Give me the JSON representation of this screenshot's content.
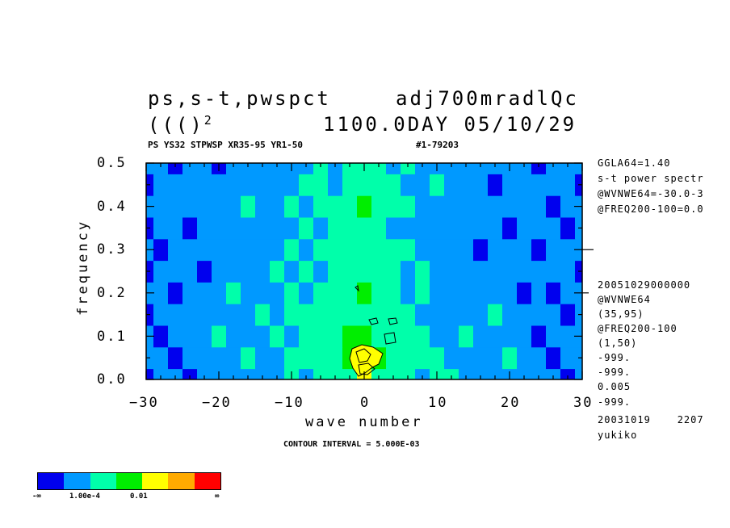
{
  "header": {
    "left_line1": "ps,s-t,pwspct",
    "right_line1": "adj700mradlQc",
    "left_line2": "((()",
    "left_line2_sup": "2",
    "right_line2": "1100.0DAY 05/10/29",
    "subtitle_left": "PS YS32 STPWSP XR35-95 YR1-50",
    "subtitle_right": "#1-79203"
  },
  "right_panel": {
    "top": [
      "GGLA64=1.40",
      "s-t power spectr",
      "@WVNWE64=-30.0-3",
      "@FREQ200-100=0.0"
    ],
    "bottom": [
      "20051029000000",
      "@WVNWE64",
      "(35,95)",
      "@FREQ200-100",
      "(1,50)",
      "-999.",
      "-999.",
      "0.005",
      "-999.",
      "20031019    2207",
      "yukiko"
    ]
  },
  "contour_label": "CONTOUR INTERVAL = 5.000E-03",
  "colorbar": {
    "colors": [
      "#0000ee",
      "#0099ff",
      "#00ffaa",
      "#00ee00",
      "#ffff00",
      "#ffaa00",
      "#ff0000"
    ],
    "labels": [
      "-∞",
      "1.00e-4",
      "0.01",
      "∞"
    ]
  },
  "chart_data": {
    "type": "heatmap",
    "xlabel": "wave number",
    "ylabel": "frequency",
    "xlim": [
      -30,
      30
    ],
    "ylim": [
      0.0,
      0.5
    ],
    "x_ticks": [
      -30,
      -20,
      -10,
      0,
      10,
      20,
      30
    ],
    "y_ticks": [
      0.0,
      0.1,
      0.2,
      0.3,
      0.4,
      0.5
    ],
    "x_tick_labels": [
      "−30",
      "−20",
      "−10",
      "0",
      "10",
      "20",
      "30"
    ],
    "y_tick_labels": [
      "0.0",
      "0.1",
      "0.2",
      "0.3",
      "0.4",
      "0.5"
    ],
    "level_colors": [
      "#0000ee",
      "#0099ff",
      "#00ffaa",
      "#00ee00",
      "#ffff00",
      "#ffaa00",
      "#ff0000"
    ],
    "grid_wavenumbers": [
      -30,
      -28,
      -26,
      -24,
      -22,
      -20,
      -18,
      -16,
      -14,
      -12,
      -10,
      -8,
      -6,
      -4,
      -2,
      0,
      2,
      4,
      6,
      8,
      10,
      12,
      14,
      16,
      18,
      20,
      22,
      24,
      26,
      28,
      30
    ],
    "grid_frequencies": [
      0.0,
      0.05,
      0.1,
      0.15,
      0.2,
      0.25,
      0.3,
      0.35,
      0.4,
      0.45,
      0.5
    ],
    "level_index": [
      [
        0,
        1,
        1,
        0,
        1,
        1,
        1,
        1,
        1,
        1,
        2,
        1,
        2,
        2,
        2,
        4,
        2,
        2,
        2,
        1,
        2,
        2,
        1,
        1,
        1,
        1,
        1,
        1,
        1,
        0,
        1
      ],
      [
        1,
        1,
        0,
        1,
        1,
        1,
        1,
        2,
        1,
        1,
        2,
        2,
        2,
        2,
        3,
        3,
        3,
        2,
        2,
        2,
        2,
        1,
        1,
        1,
        1,
        2,
        1,
        1,
        0,
        1,
        1
      ],
      [
        1,
        0,
        1,
        1,
        1,
        2,
        1,
        1,
        1,
        2,
        1,
        2,
        2,
        2,
        3,
        3,
        2,
        2,
        2,
        2,
        1,
        1,
        2,
        1,
        1,
        1,
        1,
        0,
        1,
        1,
        1
      ],
      [
        0,
        1,
        1,
        1,
        1,
        1,
        1,
        1,
        2,
        1,
        2,
        2,
        2,
        2,
        2,
        2,
        2,
        2,
        2,
        1,
        1,
        1,
        1,
        1,
        2,
        1,
        1,
        1,
        1,
        0,
        1
      ],
      [
        1,
        1,
        0,
        1,
        1,
        1,
        2,
        1,
        1,
        1,
        2,
        1,
        2,
        2,
        2,
        3,
        2,
        2,
        1,
        2,
        1,
        1,
        1,
        1,
        1,
        1,
        0,
        1,
        0,
        1,
        1
      ],
      [
        0,
        1,
        1,
        1,
        0,
        1,
        1,
        1,
        1,
        2,
        1,
        2,
        1,
        2,
        2,
        2,
        2,
        2,
        1,
        2,
        1,
        1,
        1,
        1,
        1,
        1,
        1,
        1,
        1,
        1,
        0
      ],
      [
        1,
        0,
        1,
        1,
        1,
        1,
        1,
        1,
        1,
        1,
        2,
        1,
        2,
        2,
        2,
        2,
        2,
        2,
        2,
        1,
        1,
        1,
        1,
        0,
        1,
        1,
        1,
        0,
        1,
        1,
        1
      ],
      [
        0,
        1,
        1,
        0,
        1,
        1,
        1,
        1,
        1,
        1,
        1,
        2,
        1,
        2,
        2,
        2,
        2,
        1,
        1,
        1,
        1,
        1,
        1,
        1,
        1,
        0,
        1,
        1,
        1,
        0,
        1
      ],
      [
        1,
        1,
        1,
        1,
        1,
        1,
        1,
        2,
        1,
        1,
        2,
        1,
        2,
        2,
        2,
        3,
        2,
        2,
        2,
        1,
        1,
        1,
        1,
        1,
        1,
        1,
        1,
        1,
        0,
        1,
        1
      ],
      [
        0,
        1,
        1,
        1,
        1,
        1,
        1,
        1,
        1,
        1,
        1,
        2,
        2,
        1,
        2,
        2,
        2,
        2,
        1,
        1,
        2,
        1,
        1,
        1,
        0,
        1,
        1,
        1,
        1,
        1,
        0
      ],
      [
        1,
        1,
        0,
        1,
        1,
        0,
        1,
        1,
        1,
        1,
        1,
        1,
        2,
        1,
        2,
        2,
        2,
        1,
        2,
        1,
        1,
        1,
        1,
        1,
        1,
        1,
        1,
        0,
        1,
        1,
        1
      ]
    ]
  }
}
